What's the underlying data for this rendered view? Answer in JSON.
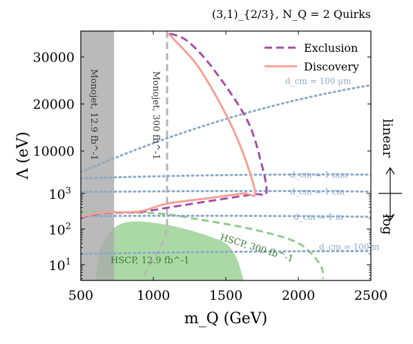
{
  "chart_data": {
    "type": "line",
    "title": "(3,1)_{2/3},  N_Q = 2 Quirks",
    "xlabel": "m_Q (GeV)",
    "ylabel": "Λ (eV)",
    "xlim": [
      500,
      2500
    ],
    "x_ticks": [
      "500",
      "1000",
      "1500",
      "2000",
      "2500"
    ],
    "y_scale": "log below 1000 eV, linear above 1000 eV",
    "y_ticks_log": [
      "10^1",
      "10^2",
      "10^3"
    ],
    "y_ticks_linear": [
      "10000",
      "20000",
      "30000"
    ],
    "right_side_labels": {
      "upper": "linear",
      "lower": "log"
    },
    "grid": false,
    "legend": {
      "placement": "top-right",
      "entries": [
        "Exclusion",
        "Discovery"
      ]
    },
    "series": [
      {
        "name": "Exclusion",
        "style": "dashed",
        "color": "#a64ca6",
        "points": [
          {
            "x": 500,
            "y": 210
          },
          {
            "x": 650,
            "y": 280
          },
          {
            "x": 900,
            "y": 300
          },
          {
            "x": 1150,
            "y": 430
          },
          {
            "x": 1500,
            "y": 720
          },
          {
            "x": 1700,
            "y": 950
          },
          {
            "x": 1780,
            "y": 1200
          },
          {
            "x": 1740,
            "y": 8000
          },
          {
            "x": 1640,
            "y": 17000
          },
          {
            "x": 1400,
            "y": 28000
          },
          {
            "x": 1230,
            "y": 33500
          },
          {
            "x": 1110,
            "y": 35000
          }
        ]
      },
      {
        "name": "Discovery",
        "style": "solid",
        "color": "#f4a097",
        "points": [
          {
            "x": 500,
            "y": 220
          },
          {
            "x": 650,
            "y": 290
          },
          {
            "x": 900,
            "y": 310
          },
          {
            "x": 1100,
            "y": 520
          },
          {
            "x": 1400,
            "y": 750
          },
          {
            "x": 1620,
            "y": 1000
          },
          {
            "x": 1700,
            "y": 1500
          },
          {
            "x": 1560,
            "y": 14000
          },
          {
            "x": 1330,
            "y": 27000
          },
          {
            "x": 1150,
            "y": 33500
          },
          {
            "x": 1100,
            "y": 35000
          }
        ]
      }
    ],
    "regions": [
      {
        "label": "Monojet, 12.9 fb^-1",
        "kind": "excluded band",
        "color": "#a9a9a9",
        "x_range": [
          500,
          730
        ]
      },
      {
        "label": "Monojet, 300 fb^-1",
        "kind": "dashed boundary",
        "color": "#b5b5b5",
        "x_approx": 1095
      },
      {
        "label": "HSCP, 12.9 fb^-1",
        "kind": "excluded region",
        "color": "#8fcc88",
        "boundary": [
          {
            "x": 600,
            "y": 4
          },
          {
            "x": 650,
            "y": 40
          },
          {
            "x": 800,
            "y": 150
          },
          {
            "x": 1100,
            "y": 130
          },
          {
            "x": 1450,
            "y": 50
          },
          {
            "x": 1560,
            "y": 20
          },
          {
            "x": 1620,
            "y": 4
          }
        ]
      },
      {
        "label": "HSCP, 300 fb^-1",
        "kind": "dashed boundary",
        "color": "#8fcc88",
        "boundary": [
          {
            "x": 500,
            "y": 300
          },
          {
            "x": 1000,
            "y": 280
          },
          {
            "x": 1300,
            "y": 190
          },
          {
            "x": 1700,
            "y": 95
          },
          {
            "x": 2000,
            "y": 40
          },
          {
            "x": 2150,
            "y": 10
          },
          {
            "x": 2170,
            "y": 4
          }
        ]
      }
    ],
    "contours": [
      {
        "label": "d_cm = 100 μm",
        "color": "#89a9c8",
        "style": "dotted",
        "y_at_left": 5500,
        "y_at_right": 24000
      },
      {
        "label": "d_cm = 1 mm",
        "color": "#89a9c8",
        "style": "dotted",
        "y_at_left": 4200,
        "y_at_right": 5000
      },
      {
        "label": "d_cm = 1 cm",
        "color": "#89a9c8",
        "style": "dotted",
        "y_at_left": 1300,
        "y_at_right": 1400
      },
      {
        "label": "d_cm = 1 m",
        "color": "#89a9c8",
        "style": "dotted",
        "y_at_left": 230,
        "y_at_right": 220
      },
      {
        "label": "d_cm = 100 m",
        "color": "#89a9c8",
        "style": "dotted",
        "y_at_left": 20,
        "y_at_right": 24
      }
    ]
  }
}
